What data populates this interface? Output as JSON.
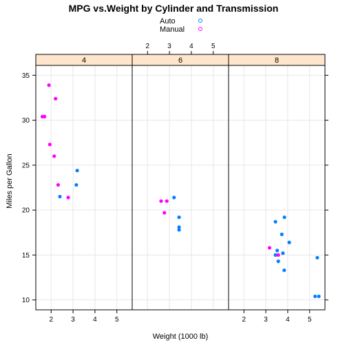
{
  "chart_data": {
    "type": "scatter",
    "title": "MPG vs.Weight by Cylinder and Transmission",
    "xlabel": "Weight (1000 lb)",
    "ylabel": "Miles per Gallon",
    "xlim": [
      1.3,
      5.7
    ],
    "ylim": [
      8.9,
      36.1
    ],
    "xticks": [
      "2",
      "3",
      "4",
      "5"
    ],
    "yticks": [
      "10",
      "15",
      "20",
      "25",
      "30",
      "35"
    ],
    "grid": true,
    "legend": {
      "position": "top",
      "entries": [
        {
          "name": "Auto",
          "color": "#0080ff"
        },
        {
          "name": "Manual",
          "color": "#ff00ff"
        }
      ]
    },
    "panels": [
      {
        "label": "4",
        "series": [
          {
            "name": "Auto",
            "points": [
              [
                2.4,
                21.5
              ],
              [
                3.15,
                22.8
              ],
              [
                3.19,
                24.4
              ]
            ]
          },
          {
            "name": "Manual",
            "points": [
              [
                1.6,
                30.4
              ],
              [
                1.7,
                30.4
              ],
              [
                1.9,
                33.9
              ],
              [
                1.94,
                27.3
              ],
              [
                2.14,
                26.0
              ],
              [
                2.2,
                32.4
              ],
              [
                2.32,
                22.8
              ],
              [
                2.78,
                21.4
              ]
            ]
          }
        ]
      },
      {
        "label": "6",
        "series": [
          {
            "name": "Auto",
            "points": [
              [
                3.21,
                21.4
              ],
              [
                3.44,
                19.2
              ],
              [
                3.44,
                18.1
              ],
              [
                3.44,
                17.8
              ]
            ]
          },
          {
            "name": "Manual",
            "points": [
              [
                2.62,
                21.0
              ],
              [
                2.77,
                19.7
              ],
              [
                2.88,
                21.0
              ]
            ]
          }
        ]
      },
      {
        "label": "8",
        "series": [
          {
            "name": "Auto",
            "points": [
              [
                3.44,
                18.7
              ],
              [
                3.57,
                14.3
              ],
              [
                3.73,
                17.3
              ],
              [
                3.78,
                15.2
              ],
              [
                4.07,
                16.4
              ],
              [
                3.84,
                13.3
              ],
              [
                3.85,
                19.2
              ],
              [
                5.25,
                10.4
              ],
              [
                5.42,
                10.4
              ],
              [
                5.35,
                14.7
              ],
              [
                3.52,
                15.5
              ],
              [
                3.44,
                15.0
              ]
            ]
          },
          {
            "name": "Manual",
            "points": [
              [
                3.17,
                15.8
              ],
              [
                3.57,
                15.0
              ]
            ]
          }
        ]
      }
    ]
  }
}
